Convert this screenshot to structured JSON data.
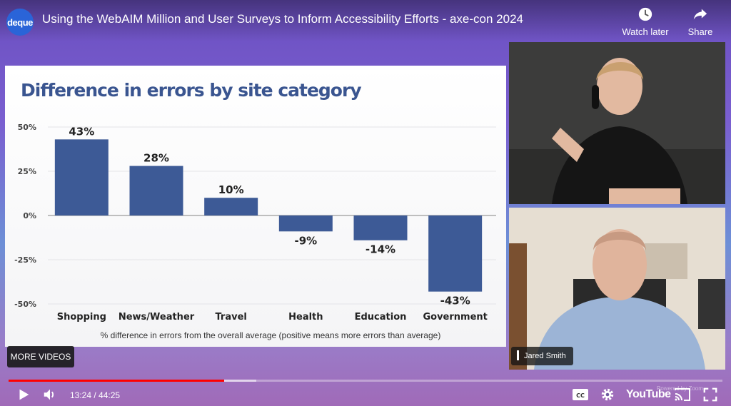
{
  "player": {
    "channel_logo": "deque",
    "title": "Using the WebAIM Million and User Surveys to Inform Accessibility Efforts - axe-con 2024",
    "watch_later_label": "Watch later",
    "share_label": "Share",
    "more_videos_label": "MORE VIDEOS",
    "current_time": "13:24",
    "duration": "44:25",
    "time_display": "13:24 / 44:25",
    "progress_fraction": 0.3017,
    "buffer_fraction": 0.347,
    "youtube_label": "YouTube",
    "powered_label": "Powered by Zoom",
    "speaker_name": "Jared Smith",
    "icons": [
      "clock-icon",
      "share-icon",
      "play-icon",
      "volume-icon",
      "cc-icon",
      "gear-icon",
      "cast-icon",
      "fullscreen-icon"
    ]
  },
  "slide": {
    "title": "Difference in errors by site category"
  },
  "chart_data": {
    "type": "bar",
    "title": "Difference in errors by site category",
    "categories": [
      "Shopping",
      "News/Weather",
      "Travel",
      "Health",
      "Education",
      "Government"
    ],
    "values": [
      43,
      28,
      10,
      -9,
      -14,
      -43
    ],
    "value_labels": [
      "43%",
      "28%",
      "10%",
      "-9%",
      "-14%",
      "-43%"
    ],
    "yticks": [
      50,
      25,
      0,
      -25,
      -50
    ],
    "ytick_labels": [
      "50%",
      "25%",
      "0%",
      "-25%",
      "-50%"
    ],
    "ylim": [
      -50,
      50
    ],
    "xlabel": "% difference in errors from the overall average (positive means more errors than average)",
    "ylabel": "",
    "grid": true,
    "bar_color": "#3d5a96"
  },
  "colors": {
    "accent_red": "#ff0000",
    "slide_title": "#3a5590",
    "bar": "#3d5a96"
  }
}
